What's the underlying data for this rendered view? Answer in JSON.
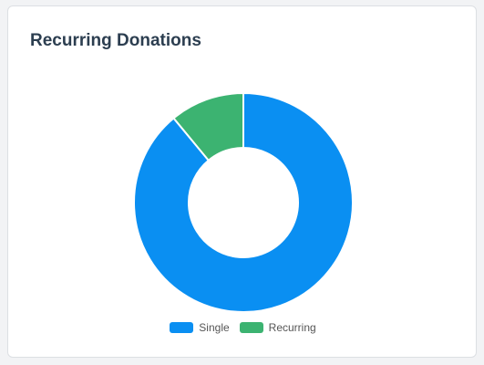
{
  "card": {
    "title": "Recurring Donations"
  },
  "colors": {
    "single": "#0a8ff2",
    "recurring": "#3cb371"
  },
  "chart_data": {
    "type": "pie",
    "variant": "doughnut",
    "title": "Recurring Donations",
    "labels": [
      "Single",
      "Recurring"
    ],
    "values": [
      89,
      11
    ],
    "colors": [
      "#0a8ff2",
      "#3cb371"
    ],
    "legend_position": "bottom"
  }
}
